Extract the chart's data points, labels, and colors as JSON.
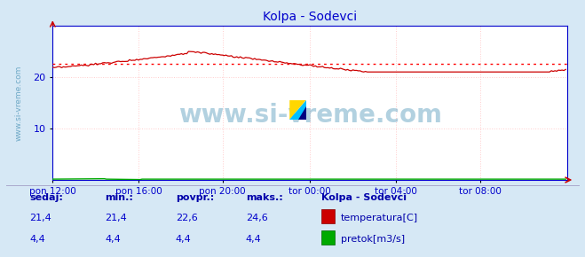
{
  "title": "Kolpa - Sodevci",
  "title_color": "#0000cc",
  "bg_color": "#d6e8f5",
  "plot_bg_color": "#ffffff",
  "x_labels": [
    "pon 12:00",
    "pon 16:00",
    "pon 20:00",
    "tor 00:00",
    "tor 04:00",
    "tor 08:00"
  ],
  "x_ticks_norm": [
    0.0,
    0.1667,
    0.3333,
    0.5,
    0.6667,
    0.8333
  ],
  "x_max": 288,
  "y_min": 0,
  "y_max": 30,
  "y_ticks": [
    10,
    20
  ],
  "grid_color": "#ffcccc",
  "avg_line_value": 22.6,
  "avg_line_color": "#ff0000",
  "temp_color": "#cc0000",
  "flow_color": "#00aa00",
  "watermark_text": "www.si-vreme.com",
  "watermark_color": "#5599bb",
  "axis_color": "#0000cc",
  "tick_label_color": "#0000cc",
  "footer_label_color": "#0000aa",
  "sedaj_label": "sedaj:",
  "min_label": "min.:",
  "povpr_label": "povpr.:",
  "maks_label": "maks.:",
  "station_label": "Kolpa - Sodevci",
  "temp_label": "temperatura[C]",
  "flow_label": "pretok[m3/s]",
  "sedaj_temp": "21,4",
  "min_temp": "21,4",
  "povpr_temp": "22,6",
  "maks_temp": "24,6",
  "sedaj_flow": "4,4",
  "min_flow": "4,4",
  "povpr_flow": "4,4",
  "maks_flow": "4,4"
}
